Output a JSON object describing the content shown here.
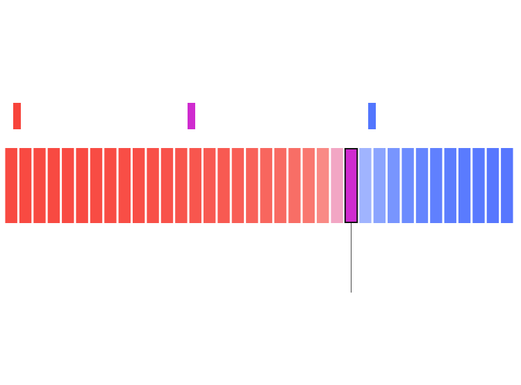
{
  "chart_data": {
    "type": "bar",
    "orientation": "horizontal-strip",
    "title": "",
    "xlabel": "",
    "ylabel": "",
    "grid": false,
    "legend_placement": "top",
    "bin_count": 36,
    "highlighted_bin_index": 24,
    "series": [
      {
        "key": "red",
        "color": "#f7443b",
        "bins": 24
      },
      {
        "key": "tossup",
        "color": "#cf2bcf",
        "bins": 1
      },
      {
        "key": "blue",
        "color": "#5276fe",
        "bins": 11
      }
    ],
    "bin_colors": [
      "#f84a42",
      "#f84a42",
      "#f84a42",
      "#f84a42",
      "#f84a42",
      "#f84a42",
      "#f84c44",
      "#f84c44",
      "#f84e46",
      "#f84e46",
      "#f85048",
      "#f8524a",
      "#f8544c",
      "#f8564e",
      "#f85a52",
      "#f85a52",
      "#f85e56",
      "#f8625a",
      "#f8665e",
      "#f86a62",
      "#f86e66",
      "#f9776f",
      "#f98a85",
      "#f2a6c4",
      "#cf2bcf",
      "#a0b4fe",
      "#8ba4fe",
      "#7895fe",
      "#6c8cfe",
      "#6585fe",
      "#6080fe",
      "#5c7dfe",
      "#5a7bfe",
      "#5879fe",
      "#5777fe",
      "#5676fe"
    ]
  },
  "legend": {
    "items": [
      {
        "color": "#f7443b"
      },
      {
        "color": "#cf2bcf"
      },
      {
        "color": "#5276fe"
      }
    ]
  }
}
